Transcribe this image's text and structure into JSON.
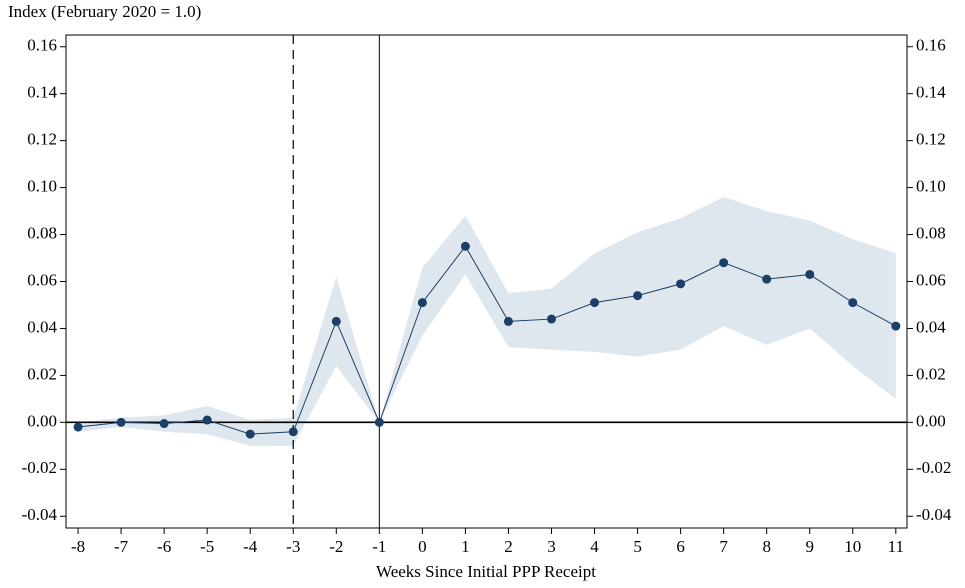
{
  "chart_data": {
    "type": "line",
    "title": "Index (February 2020 = 1.0)",
    "x_label": "Weeks Since Initial PPP Receipt",
    "x": [
      -8,
      -7,
      -6,
      -5,
      -4,
      -3,
      -2,
      -1,
      0,
      1,
      2,
      3,
      4,
      5,
      6,
      7,
      8,
      9,
      10,
      11
    ],
    "series": [
      {
        "color": "#1b3f66",
        "band_color": "#dfe7ee",
        "values": [
          -0.002,
          0.0,
          -0.0005,
          0.001,
          -0.005,
          -0.004,
          0.043,
          0.0,
          0.051,
          0.075,
          0.043,
          0.044,
          0.051,
          0.054,
          0.059,
          0.068,
          0.061,
          0.063,
          0.051,
          0.041
        ],
        "ci_lower": [
          -0.004,
          -0.002,
          -0.004,
          -0.005,
          -0.01,
          -0.01,
          0.024,
          0.0,
          0.037,
          0.063,
          0.032,
          0.031,
          0.03,
          0.028,
          0.031,
          0.041,
          0.033,
          0.04,
          0.024,
          0.01
        ],
        "ci_upper": [
          0.0,
          0.002,
          0.003,
          0.007,
          0.001,
          0.002,
          0.062,
          0.0,
          0.066,
          0.088,
          0.055,
          0.057,
          0.072,
          0.081,
          0.087,
          0.096,
          0.09,
          0.086,
          0.078,
          0.072
        ]
      }
    ],
    "xlim": [
      -8.28,
      11.26
    ],
    "xticks": [
      -8,
      -7,
      -6,
      -5,
      -4,
      -3,
      -2,
      -1,
      0,
      1,
      2,
      3,
      4,
      5,
      6,
      7,
      8,
      9,
      10,
      11
    ],
    "ylim": [
      -0.045,
      0.165
    ],
    "yticks": [
      {
        "value": -0.04,
        "label": "-0.04"
      },
      {
        "value": -0.02,
        "label": "-0.02"
      },
      {
        "value": 0,
        "label": "0.00"
      },
      {
        "value": 0.02,
        "label": "0.02"
      },
      {
        "value": 0.04,
        "label": "0.04"
      },
      {
        "value": 0.06,
        "label": "0.06"
      },
      {
        "value": 0.08,
        "label": "0.08"
      },
      {
        "value": 0.1,
        "label": "0.10"
      },
      {
        "value": 0.12,
        "label": "0.12"
      },
      {
        "value": 0.14,
        "label": "0.14"
      },
      {
        "value": 0.16,
        "label": "0.16"
      }
    ],
    "mirror_y_axis": true,
    "dashed_vline": -3,
    "solid_vline": -1,
    "hline": 0
  }
}
